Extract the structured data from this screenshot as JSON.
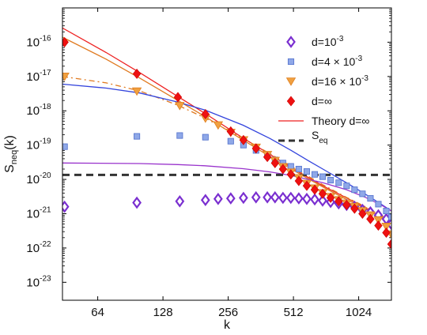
{
  "chart_data": {
    "type": "scatter",
    "xlabel": "k",
    "ylabel": "S_neq(k)",
    "xscale": "log2",
    "yscale": "log10",
    "xlim": [
      44,
      1450
    ],
    "ylim": [
      3e-24,
      1e-15
    ],
    "x_ticks": [
      64,
      128,
      256,
      512,
      1024
    ],
    "x_tick_labels": [
      "64",
      "128",
      "256",
      "512",
      "1024"
    ],
    "y_ticks": [
      1e-23,
      1e-22,
      1e-21,
      1e-20,
      1e-19,
      1e-18,
      1e-17,
      1e-16
    ],
    "y_tick_bases": [
      "10",
      "10",
      "10",
      "10",
      "10",
      "10",
      "10",
      "10"
    ],
    "y_tick_exponents": [
      "-23",
      "-22",
      "-21",
      "-20",
      "-19",
      "-18",
      "-17",
      "-16"
    ],
    "legend_position": "top-right",
    "grid": false,
    "series": [
      {
        "name_base": "d=10",
        "name_sup": "-3",
        "marker": "diamond-open",
        "color": "#7a2fd0",
        "x": [
          45,
          97,
          153,
          201,
          230,
          263,
          301,
          344,
          388,
          421,
          458,
          498,
          542,
          590,
          642,
          698,
          760,
          828,
          901,
          980,
          1066,
          1160,
          1262,
          1373,
          1449
        ],
        "y": [
          1.6e-21,
          2.1e-21,
          2.3e-21,
          2.5e-21,
          2.7e-21,
          2.8e-21,
          2.9e-21,
          3e-21,
          3e-21,
          3e-21,
          2.9e-21,
          2.9e-21,
          2.8e-21,
          2.7e-21,
          2.6e-21,
          2.4e-21,
          2.2e-21,
          2e-21,
          1.8e-21,
          1.6e-21,
          1.3e-21,
          1.1e-21,
          9e-22,
          7e-22,
          5e-22
        ]
      },
      {
        "name_base": "d=4 × 10",
        "name_sup": "-3",
        "marker": "square",
        "color": "#8fa8e8",
        "x": [
          45,
          97,
          153,
          201,
          263,
          301,
          344,
          388,
          421,
          458,
          498,
          542,
          590,
          642,
          698,
          760,
          828,
          901,
          980,
          1066,
          1160,
          1262,
          1373,
          1449
        ],
        "y": [
          9e-20,
          1.8e-19,
          1.9e-19,
          1.7e-19,
          1.3e-19,
          1e-19,
          7e-20,
          5e-20,
          3.7e-20,
          3e-20,
          2.4e-20,
          2e-20,
          1.7e-20,
          1.4e-20,
          1.2e-20,
          9.5e-21,
          8e-21,
          6.5e-21,
          5e-21,
          3.8e-21,
          2.8e-21,
          1.9e-21,
          1.2e-21,
          8e-22
        ]
      },
      {
        "name_base": "d=16 × 10",
        "name_sup": "-3",
        "marker": "triangle-down",
        "color": "#f0a040",
        "x": [
          45,
          97,
          153,
          201,
          230,
          263,
          301,
          344,
          388,
          421,
          458,
          498,
          542,
          590,
          642,
          698,
          760,
          828,
          901,
          980,
          1066,
          1160,
          1262,
          1373,
          1449
        ],
        "y": [
          1e-17,
          3.7e-18,
          1.4e-18,
          6e-19,
          3.8e-19,
          2.3e-19,
          1.4e-19,
          8.5e-20,
          5.2e-20,
          3.5e-20,
          2.3e-20,
          1.6e-20,
          1.1e-20,
          7.5e-21,
          5.5e-21,
          4e-21,
          3.1e-21,
          2.5e-21,
          2e-21,
          1.6e-21,
          1.2e-21,
          9e-22,
          6.5e-22,
          4.2e-22,
          2.5e-22
        ]
      },
      {
        "name_base": "d=∞",
        "name_sup": "",
        "marker": "diamond-filled",
        "color": "#ee1111",
        "x": [
          45,
          97,
          150,
          201,
          263,
          301,
          344,
          388,
          421,
          458,
          498,
          542,
          590,
          642,
          698,
          760,
          828,
          901,
          980,
          1066,
          1160,
          1262,
          1373,
          1449
        ],
        "y": [
          1e-16,
          1.2e-17,
          2.5e-18,
          8e-19,
          2.5e-19,
          1.4e-19,
          8e-20,
          4.5e-20,
          3e-20,
          2e-20,
          1.4e-20,
          9e-21,
          6.5e-21,
          5e-21,
          3.8e-21,
          2.9e-21,
          2.3e-21,
          1.8e-21,
          1.4e-21,
          1e-21,
          7e-22,
          4.5e-22,
          2.8e-22,
          1.3e-22
        ]
      }
    ],
    "lines": [
      {
        "name": "Theory d=∞",
        "style": "solid",
        "color": "#ee2222",
        "x": [
          44,
          70,
          100,
          150,
          200,
          300,
          400,
          500,
          700,
          900,
          1100,
          1300,
          1450
        ],
        "y": [
          2.6e-16,
          5e-17,
          1.3e-17,
          2.6e-18,
          8.4e-19,
          1.6e-19,
          5.3e-20,
          2.2e-20,
          6.5e-21,
          2.9e-21,
          1.5e-21,
          8e-22,
          5e-22
        ]
      },
      {
        "name": "",
        "style": "solid",
        "color": "#e07a20",
        "x": [
          44,
          70,
          100,
          150,
          200,
          300,
          400,
          500,
          700,
          900,
          1100,
          1300,
          1450
        ],
        "y": [
          1.4e-16,
          3.2e-17,
          9e-18,
          2e-18,
          6.8e-19,
          1.4e-19,
          4.6e-20,
          2e-20,
          6e-21,
          2.6e-21,
          1.4e-21,
          8e-22,
          5e-22
        ]
      },
      {
        "name": "",
        "style": "dashdot",
        "color": "#e07a20",
        "x": [
          44,
          70,
          100,
          150,
          200,
          300,
          400,
          500,
          700,
          900,
          1100,
          1300,
          1450
        ],
        "y": [
          1e-17,
          6.5e-18,
          3.8e-18,
          1.45e-18,
          6.2e-19,
          1.55e-19,
          5.6e-20,
          2.4e-20,
          7e-21,
          3e-21,
          1.6e-21,
          9e-22,
          6e-22
        ]
      },
      {
        "name": "",
        "style": "solid",
        "color": "#3344dd",
        "x": [
          44,
          70,
          100,
          150,
          200,
          300,
          400,
          500,
          600,
          700,
          900,
          1100,
          1300,
          1450
        ],
        "y": [
          6e-18,
          4.6e-18,
          3.3e-18,
          1.8e-18,
          1.05e-18,
          3.8e-19,
          1.55e-19,
          7e-20,
          3.5e-20,
          2e-20,
          8e-21,
          3.7e-21,
          1.9e-21,
          1.2e-21
        ]
      },
      {
        "name": "",
        "style": "solid",
        "color": "#9933cc",
        "x": [
          44,
          100,
          150,
          200,
          300,
          400,
          500,
          600,
          700,
          900,
          1100,
          1300,
          1450
        ],
        "y": [
          3e-20,
          2.9e-20,
          2.7e-20,
          2.5e-20,
          2.05e-20,
          1.65e-20,
          1.3e-20,
          1e-20,
          8e-21,
          5e-21,
          3e-21,
          1.8e-21,
          1.2e-21
        ]
      }
    ],
    "hlines": [
      {
        "name": "S",
        "name_sub": "eq",
        "style": "dashed",
        "color": "#333333",
        "y": 1.35e-20
      }
    ]
  }
}
